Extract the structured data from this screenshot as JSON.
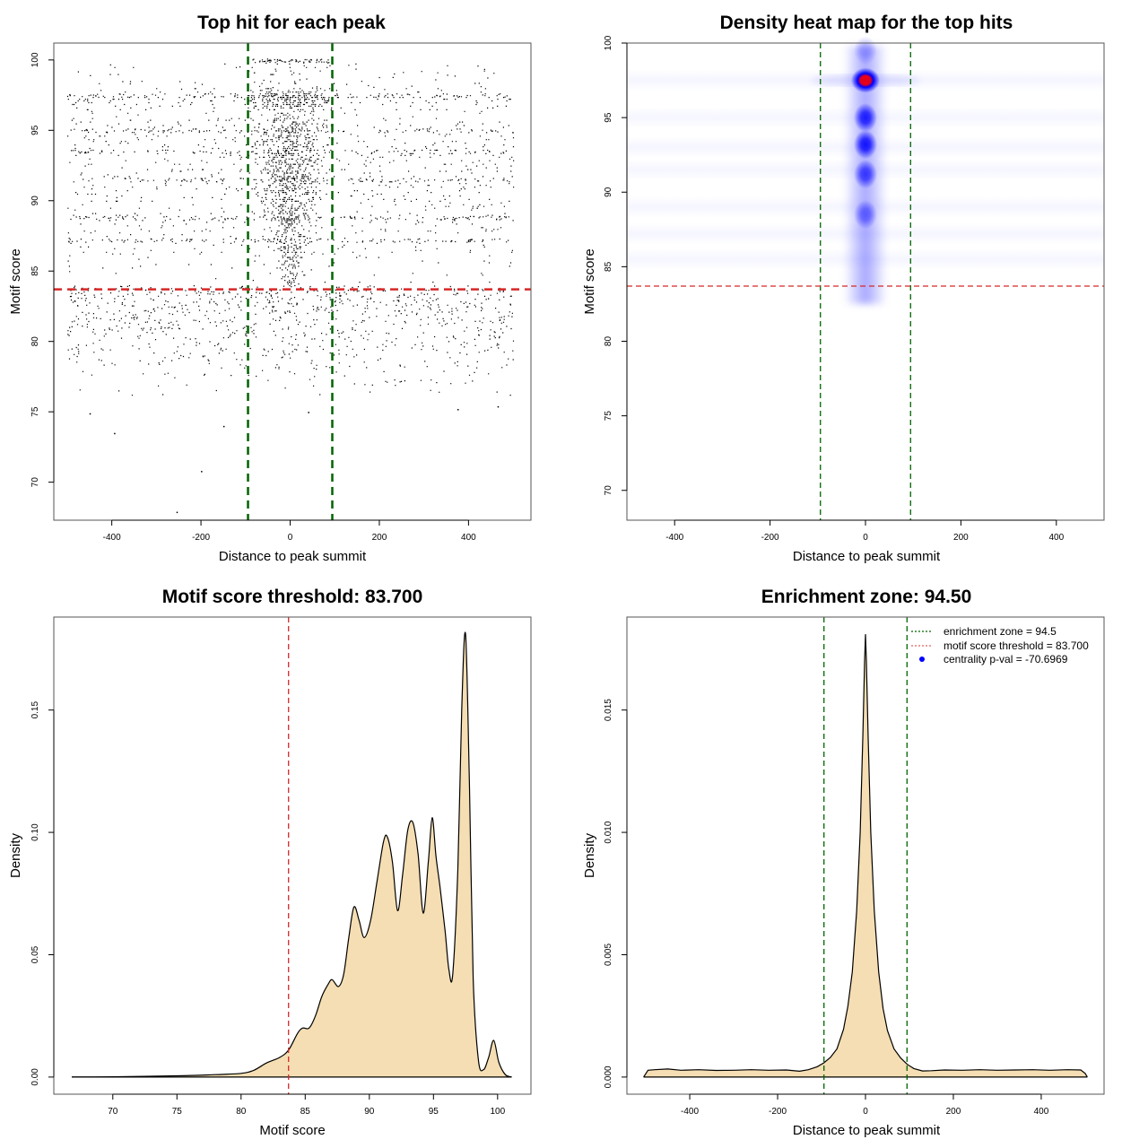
{
  "colors": {
    "threshold_line": "#d62728",
    "zone_line": "#006400",
    "density_fill": "#f5deb3",
    "heat_low": "#ffffff",
    "heat_mid": "#0000ff",
    "heat_high": "#ff0000",
    "centrality_dot": "#0000ff"
  },
  "chart_data": [
    {
      "id": "scatter",
      "type": "scatter",
      "title": "Top hit for each peak",
      "xlabel": "Distance to peak summit",
      "ylabel": "Motif score",
      "xlim": [
        -530,
        540
      ],
      "ylim": [
        67.3,
        101.2
      ],
      "xticks": [
        -400,
        -200,
        0,
        200,
        400
      ],
      "yticks": [
        70,
        75,
        80,
        85,
        90,
        95,
        100
      ],
      "xtick_labels": [
        "-400",
        "-200",
        "0",
        "200",
        "400"
      ],
      "ytick_labels": [
        "70",
        "75",
        "80",
        "85",
        "90",
        "95",
        "100"
      ],
      "x_range_of_points": [
        -500,
        500
      ],
      "dense_band_center": 0,
      "dense_band_halfwidth": 94.5,
      "approx_score_levels_with_bands": [
        97.5,
        95.0,
        93.5,
        91.5,
        88.8,
        87.2
      ],
      "threshold_hline": 83.7,
      "zone_vlines": [
        -94.5,
        94.5
      ],
      "outliers": [
        {
          "x": -255,
          "y": 67.9
        },
        {
          "x": -200,
          "y": 70.8
        },
        {
          "x": -395,
          "y": 73.5
        },
        {
          "x": -150,
          "y": 74.0
        },
        {
          "x": -450,
          "y": 74.9
        },
        {
          "x": 40,
          "y": 75.0
        },
        {
          "x": 375,
          "y": 75.2
        },
        {
          "x": 465,
          "y": 75.4
        }
      ]
    },
    {
      "id": "heatmap",
      "type": "heatmap",
      "title": "Density heat map for the top hits",
      "xlabel": "Distance to peak summit",
      "ylabel": "Motif score",
      "xlim": [
        -500,
        500
      ],
      "ylim": [
        68,
        100
      ],
      "xticks": [
        -400,
        -200,
        0,
        200,
        400
      ],
      "yticks": [
        70,
        75,
        80,
        85,
        90,
        95,
        100
      ],
      "xtick_labels": [
        "-400",
        "-200",
        "0",
        "200",
        "400"
      ],
      "ytick_labels": [
        "70",
        "75",
        "80",
        "85",
        "90",
        "95",
        "100"
      ],
      "hotspots": [
        {
          "x": 0,
          "y": 97.5,
          "intensity": 1.0
        },
        {
          "x": 0,
          "y": 95.0,
          "intensity": 0.75
        },
        {
          "x": 0,
          "y": 93.2,
          "intensity": 0.8
        },
        {
          "x": 0,
          "y": 91.2,
          "intensity": 0.6
        },
        {
          "x": 0,
          "y": 88.5,
          "intensity": 0.4
        },
        {
          "x": 0,
          "y": 99.5,
          "intensity": 0.15
        }
      ],
      "threshold_hline": 83.7,
      "zone_vlines": [
        -94.5,
        94.5
      ]
    },
    {
      "id": "score-density",
      "type": "area",
      "title": "Motif score threshold: 83.700",
      "xlabel": "Motif score",
      "ylabel": "Density",
      "xlim": [
        65.4,
        102.6
      ],
      "ylim": [
        -0.007,
        0.188
      ],
      "xticks": [
        70,
        75,
        80,
        85,
        90,
        95,
        100
      ],
      "yticks": [
        0.0,
        0.05,
        0.1,
        0.15
      ],
      "xtick_labels": [
        "70",
        "75",
        "80",
        "85",
        "90",
        "95",
        "100"
      ],
      "ytick_labels": [
        "0.00",
        "0.05",
        "0.10",
        "0.15"
      ],
      "x": [
        66.8,
        70,
        75,
        78,
        80,
        81,
        82,
        83,
        83.7,
        84.4,
        84.8,
        85.3,
        85.8,
        86.3,
        86.8,
        87.1,
        87.6,
        88.0,
        88.4,
        88.8,
        89.2,
        89.6,
        90.1,
        90.6,
        91.1,
        91.4,
        91.8,
        92.2,
        92.6,
        93.0,
        93.4,
        93.8,
        94.2,
        94.6,
        94.9,
        95.2,
        95.5,
        95.9,
        96.2,
        96.5,
        96.9,
        97.2,
        97.5,
        97.8,
        98.1,
        98.5,
        98.9,
        99.3,
        99.7,
        100.1,
        100.6,
        101.1
      ],
      "y": [
        0.0,
        0.0001,
        0.0005,
        0.001,
        0.0015,
        0.0028,
        0.0058,
        0.008,
        0.011,
        0.0178,
        0.02,
        0.02,
        0.025,
        0.033,
        0.038,
        0.0398,
        0.037,
        0.042,
        0.057,
        0.0695,
        0.064,
        0.057,
        0.064,
        0.08,
        0.096,
        0.0982,
        0.088,
        0.068,
        0.083,
        0.101,
        0.104,
        0.091,
        0.067,
        0.088,
        0.106,
        0.09,
        0.078,
        0.06,
        0.044,
        0.042,
        0.085,
        0.15,
        0.181,
        0.12,
        0.04,
        0.007,
        0.003,
        0.008,
        0.015,
        0.006,
        0.001,
        0.0
      ],
      "threshold_vline": 83.7
    },
    {
      "id": "position-density",
      "type": "area",
      "title": "Enrichment zone: 94.50",
      "xlabel": "Distance to peak summit",
      "ylabel": "Density",
      "xlim": [
        -543,
        543
      ],
      "ylim": [
        -0.0007,
        0.0188
      ],
      "xticks": [
        -400,
        -200,
        0,
        200,
        400
      ],
      "yticks": [
        0.0,
        0.005,
        0.01,
        0.015
      ],
      "xtick_labels": [
        "-400",
        "-200",
        "0",
        "200",
        "400"
      ],
      "ytick_labels": [
        "0.000",
        "0.005",
        "0.010",
        "0.015"
      ],
      "x": [
        -505,
        -495,
        -480,
        -450,
        -420,
        -380,
        -340,
        -300,
        -260,
        -220,
        -180,
        -150,
        -130,
        -110,
        -95,
        -80,
        -65,
        -50,
        -40,
        -30,
        -20,
        -12,
        -6,
        -2,
        0,
        2,
        6,
        12,
        20,
        30,
        40,
        50,
        65,
        80,
        95,
        110,
        130,
        150,
        180,
        220,
        260,
        300,
        340,
        380,
        420,
        460,
        490,
        500,
        505
      ],
      "y": [
        0.0,
        0.00028,
        0.0003,
        0.00033,
        0.00028,
        0.0003,
        0.00027,
        0.00028,
        0.0003,
        0.00028,
        0.00029,
        0.00024,
        0.0003,
        0.00042,
        0.00058,
        0.0008,
        0.00115,
        0.00195,
        0.0029,
        0.0043,
        0.0068,
        0.01,
        0.014,
        0.017,
        0.0181,
        0.017,
        0.014,
        0.01,
        0.0068,
        0.0043,
        0.0028,
        0.0019,
        0.00115,
        0.00078,
        0.00052,
        0.00035,
        0.00025,
        0.00026,
        0.00029,
        0.00028,
        0.0003,
        0.00028,
        0.00029,
        0.0003,
        0.00028,
        0.0003,
        0.00029,
        0.00015,
        0.0
      ],
      "zone_vlines": [
        -94.5,
        94.5
      ],
      "legend": {
        "placement": "top-right",
        "entries": [
          {
            "label": "enrichment zone = 94.5",
            "style": "dotted-line",
            "color": "#006400"
          },
          {
            "label": "motif score threshold = 83.700",
            "style": "dotted-line",
            "color": "#e06060"
          },
          {
            "label": "centrality p-val = -70.6969",
            "style": "dot",
            "color": "#0000ff"
          }
        ]
      }
    }
  ]
}
